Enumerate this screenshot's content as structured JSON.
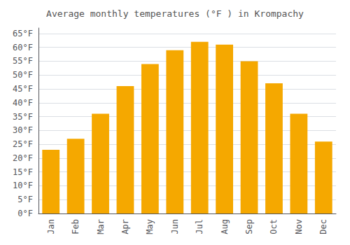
{
  "chart_data": {
    "type": "bar",
    "title": "Average monthly temperatures (°F ) in Krompachy",
    "categories": [
      "Jan",
      "Feb",
      "Mar",
      "Apr",
      "May",
      "Jun",
      "Jul",
      "Aug",
      "Sep",
      "Oct",
      "Nov",
      "Dec"
    ],
    "values": [
      23,
      27,
      36,
      46,
      54,
      59,
      62,
      61,
      55,
      47,
      36,
      26
    ],
    "color": "#F5A800",
    "ylim": [
      0,
      67
    ],
    "yticks": [
      {
        "value": 0,
        "label": "0°F"
      },
      {
        "value": 5,
        "label": "5°F"
      },
      {
        "value": 10,
        "label": "10°F"
      },
      {
        "value": 15,
        "label": "15°F"
      },
      {
        "value": 20,
        "label": "20°F"
      },
      {
        "value": 25,
        "label": "25°F"
      },
      {
        "value": 30,
        "label": "30°F"
      },
      {
        "value": 35,
        "label": "35°F"
      },
      {
        "value": 40,
        "label": "40°F"
      },
      {
        "value": 45,
        "label": "45°F"
      },
      {
        "value": 50,
        "label": "50°F"
      },
      {
        "value": 55,
        "label": "55°F"
      },
      {
        "value": 60,
        "label": "60°F"
      },
      {
        "value": 65,
        "label": "65°F"
      }
    ],
    "grid": true
  }
}
